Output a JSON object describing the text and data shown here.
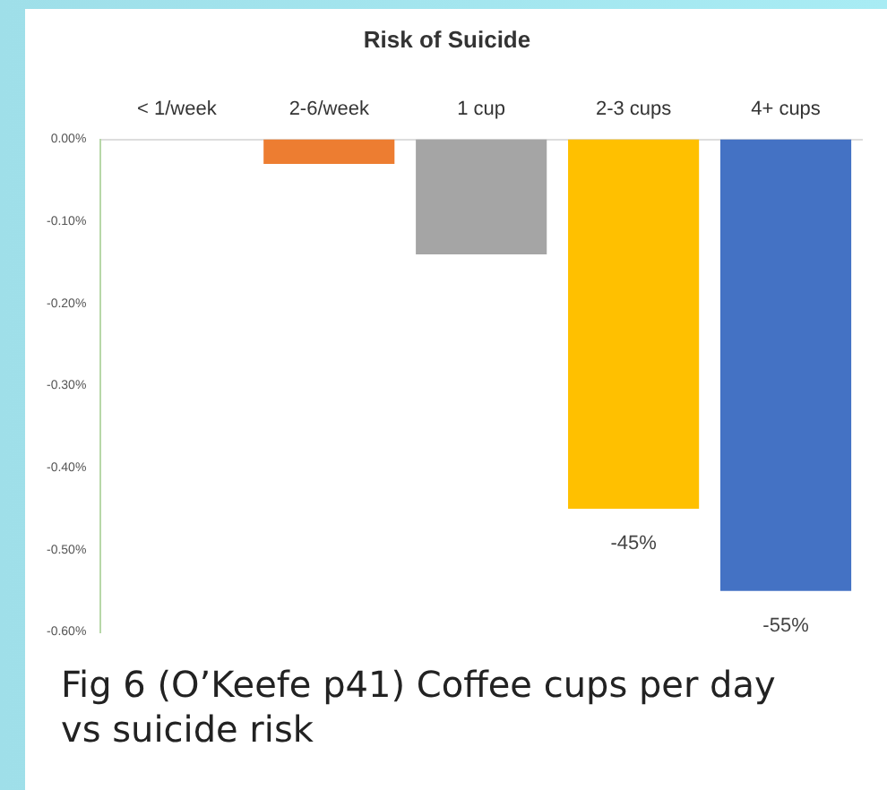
{
  "chart_data": {
    "type": "bar",
    "title": "Risk of Suicide",
    "categories": [
      "< 1/week",
      "2-6/week",
      "1 cup",
      "2-3 cups",
      "4+ cups"
    ],
    "values": [
      0,
      -0.03,
      -0.14,
      -0.45,
      -0.55
    ],
    "colors": [
      "#5b9bd5",
      "#ed7d31",
      "#a5a5a5",
      "#ffc000",
      "#4472c4"
    ],
    "value_labels": [
      null,
      null,
      null,
      "-45%",
      "-55%"
    ],
    "ylim": [
      -0.6,
      0
    ],
    "yticks": [
      {
        "value": 0,
        "label": "0.00%"
      },
      {
        "value": -0.1,
        "label": "-0.10%"
      },
      {
        "value": -0.2,
        "label": "-0.20%"
      },
      {
        "value": -0.3,
        "label": "-0.30%"
      },
      {
        "value": -0.4,
        "label": "-0.40%"
      },
      {
        "value": -0.5,
        "label": "-0.50%"
      },
      {
        "value": -0.6,
        "label": "-0.60%"
      }
    ],
    "grid": false,
    "legend": false,
    "annotations": [
      "Fig 6 (O’Keefe p41) Coffee cups per day vs suicide risk"
    ]
  }
}
